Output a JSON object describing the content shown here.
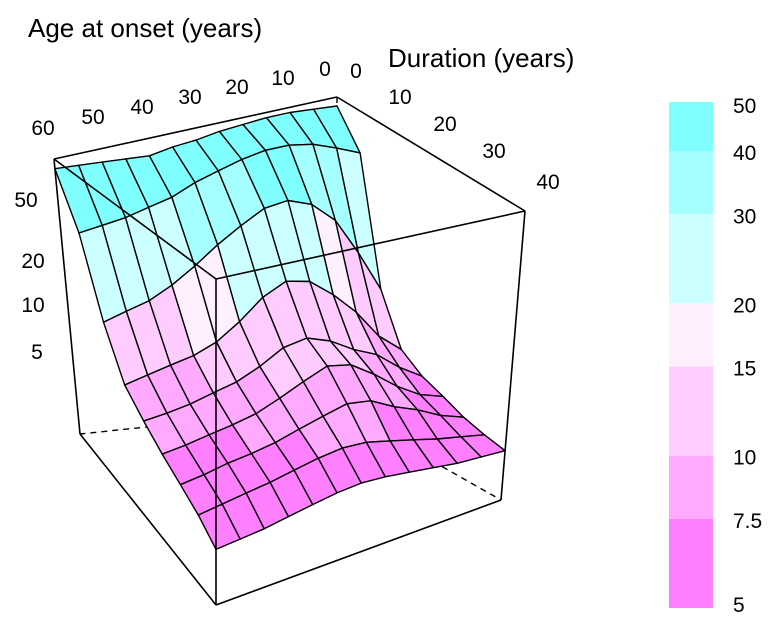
{
  "chart_data": {
    "type": "surface",
    "xlabel": "Age at onset (years)",
    "ylabel": "Duration (years)",
    "x_ticks": [
      "0",
      "10",
      "20",
      "30",
      "40",
      "50",
      "60"
    ],
    "y_ticks": [
      "0",
      "10",
      "20",
      "30",
      "40"
    ],
    "z_ticks": [
      "5",
      "10",
      "20",
      "50"
    ],
    "age_onset": [
      0,
      5,
      10,
      15,
      20,
      25,
      30,
      35,
      40,
      45,
      50,
      55,
      60
    ],
    "duration": [
      0,
      5,
      10,
      15,
      20,
      25,
      30,
      35,
      40
    ],
    "z": [
      [
        55,
        56,
        57,
        57,
        56,
        55,
        53,
        52,
        50,
        51,
        52,
        53,
        54
      ],
      [
        40,
        44,
        48,
        50,
        50,
        48,
        45,
        42,
        38,
        36,
        34,
        33,
        32
      ],
      [
        12,
        18,
        26,
        32,
        35,
        34,
        30,
        26,
        22,
        19,
        17,
        16,
        15
      ],
      [
        7.5,
        9,
        12,
        15,
        18,
        19,
        17,
        14,
        12,
        11,
        10.5,
        10,
        9.5
      ],
      [
        6.5,
        7.5,
        9,
        10,
        11.5,
        12.5,
        12,
        10.5,
        9.5,
        9,
        8.5,
        8.2,
        8
      ],
      [
        6,
        6.5,
        7.5,
        9,
        10.5,
        11,
        10,
        9,
        8.2,
        7.8,
        7.5,
        7.2,
        7
      ],
      [
        5.5,
        6,
        6.8,
        7.5,
        8.5,
        8.8,
        8.3,
        7.8,
        7.3,
        7,
        6.8,
        6.5,
        6.3
      ],
      [
        5.2,
        5.5,
        5.8,
        6.2,
        6.6,
        7,
        7.1,
        6.9,
        6.6,
        6.3,
        6.1,
        5.9,
        5.7
      ],
      [
        5,
        5.1,
        5.2,
        5.4,
        5.6,
        5.8,
        5.9,
        5.8,
        5.6,
        5.4,
        5.2,
        5.1,
        5
      ]
    ],
    "colorbar": {
      "breaks": [
        "5",
        "7.5",
        "10",
        "15",
        "20",
        "30",
        "40",
        "50"
      ],
      "colors": [
        "#ff80ff",
        "#ffaaff",
        "#ffccff",
        "#fff0ff",
        "#ccffff",
        "#a6ffff",
        "#80ffff"
      ]
    },
    "zlim": [
      3,
      60
    ]
  }
}
